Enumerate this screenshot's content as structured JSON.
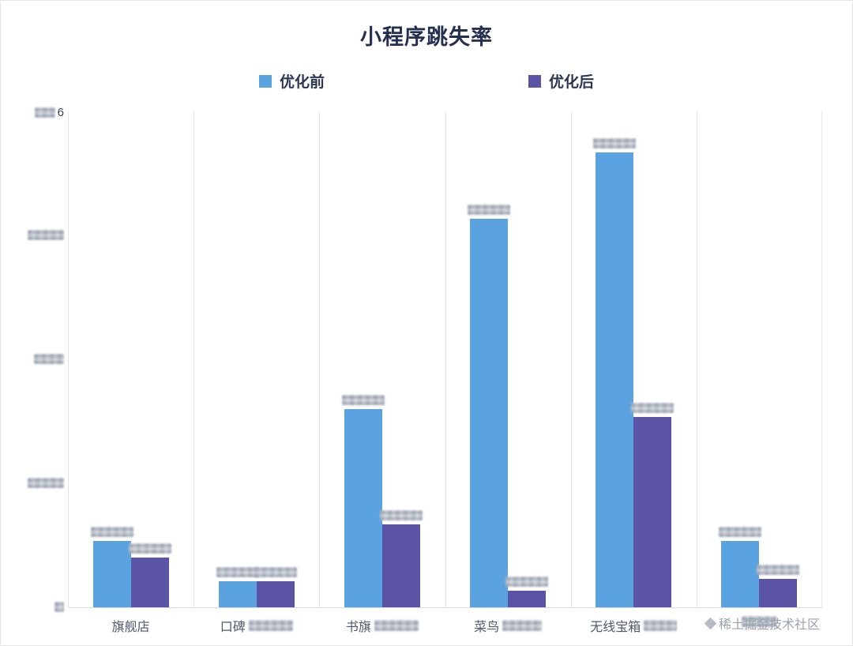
{
  "title": "小程序跳失率",
  "watermark": {
    "text": "稀土掘金技术社区"
  },
  "y_axis": {
    "top_label": "6",
    "blurred_tick_count": 5
  },
  "chart_data": {
    "type": "bar",
    "title": "小程序跳失率",
    "categories": [
      {
        "name": "旗舰店",
        "blurred_suffix": false,
        "blur_width": 0
      },
      {
        "name": "口碑",
        "blurred_suffix": true,
        "blur_width": 56
      },
      {
        "name": "书旗",
        "blurred_suffix": true,
        "blur_width": 56
      },
      {
        "name": "菜鸟",
        "blurred_suffix": true,
        "blur_width": 50
      },
      {
        "name": "无线宝箱",
        "blurred_suffix": true,
        "blur_width": 42
      },
      {
        "name": "",
        "blurred_suffix": true,
        "blur_width": 44
      }
    ],
    "series": [
      {
        "name": "优化前",
        "color": "#5BA3E0",
        "values": [
          0.08,
          0.032,
          0.24,
          0.47,
          0.55,
          0.08
        ]
      },
      {
        "name": "优化后",
        "color": "#5B54A6",
        "values": [
          0.06,
          0.032,
          0.1,
          0.02,
          0.23,
          0.034
        ]
      }
    ],
    "ylim": [
      0,
      0.6
    ],
    "grid": "vertical-only",
    "legend_position": "top",
    "values_estimated": true,
    "data_labels_blurred": true
  }
}
